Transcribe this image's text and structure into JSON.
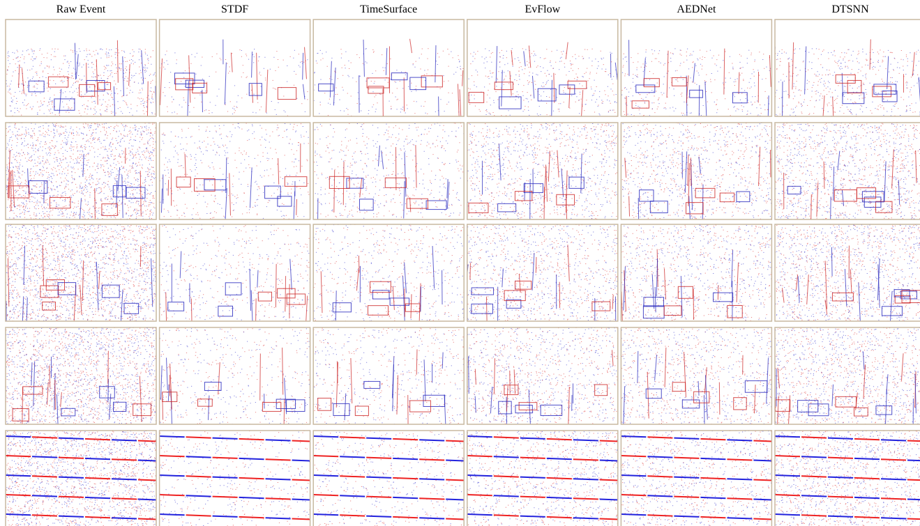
{
  "columns": [
    "Raw Event",
    "STDF",
    "TimeSurface",
    "EvFlow",
    "AEDNet",
    "DTSNN"
  ]
}
